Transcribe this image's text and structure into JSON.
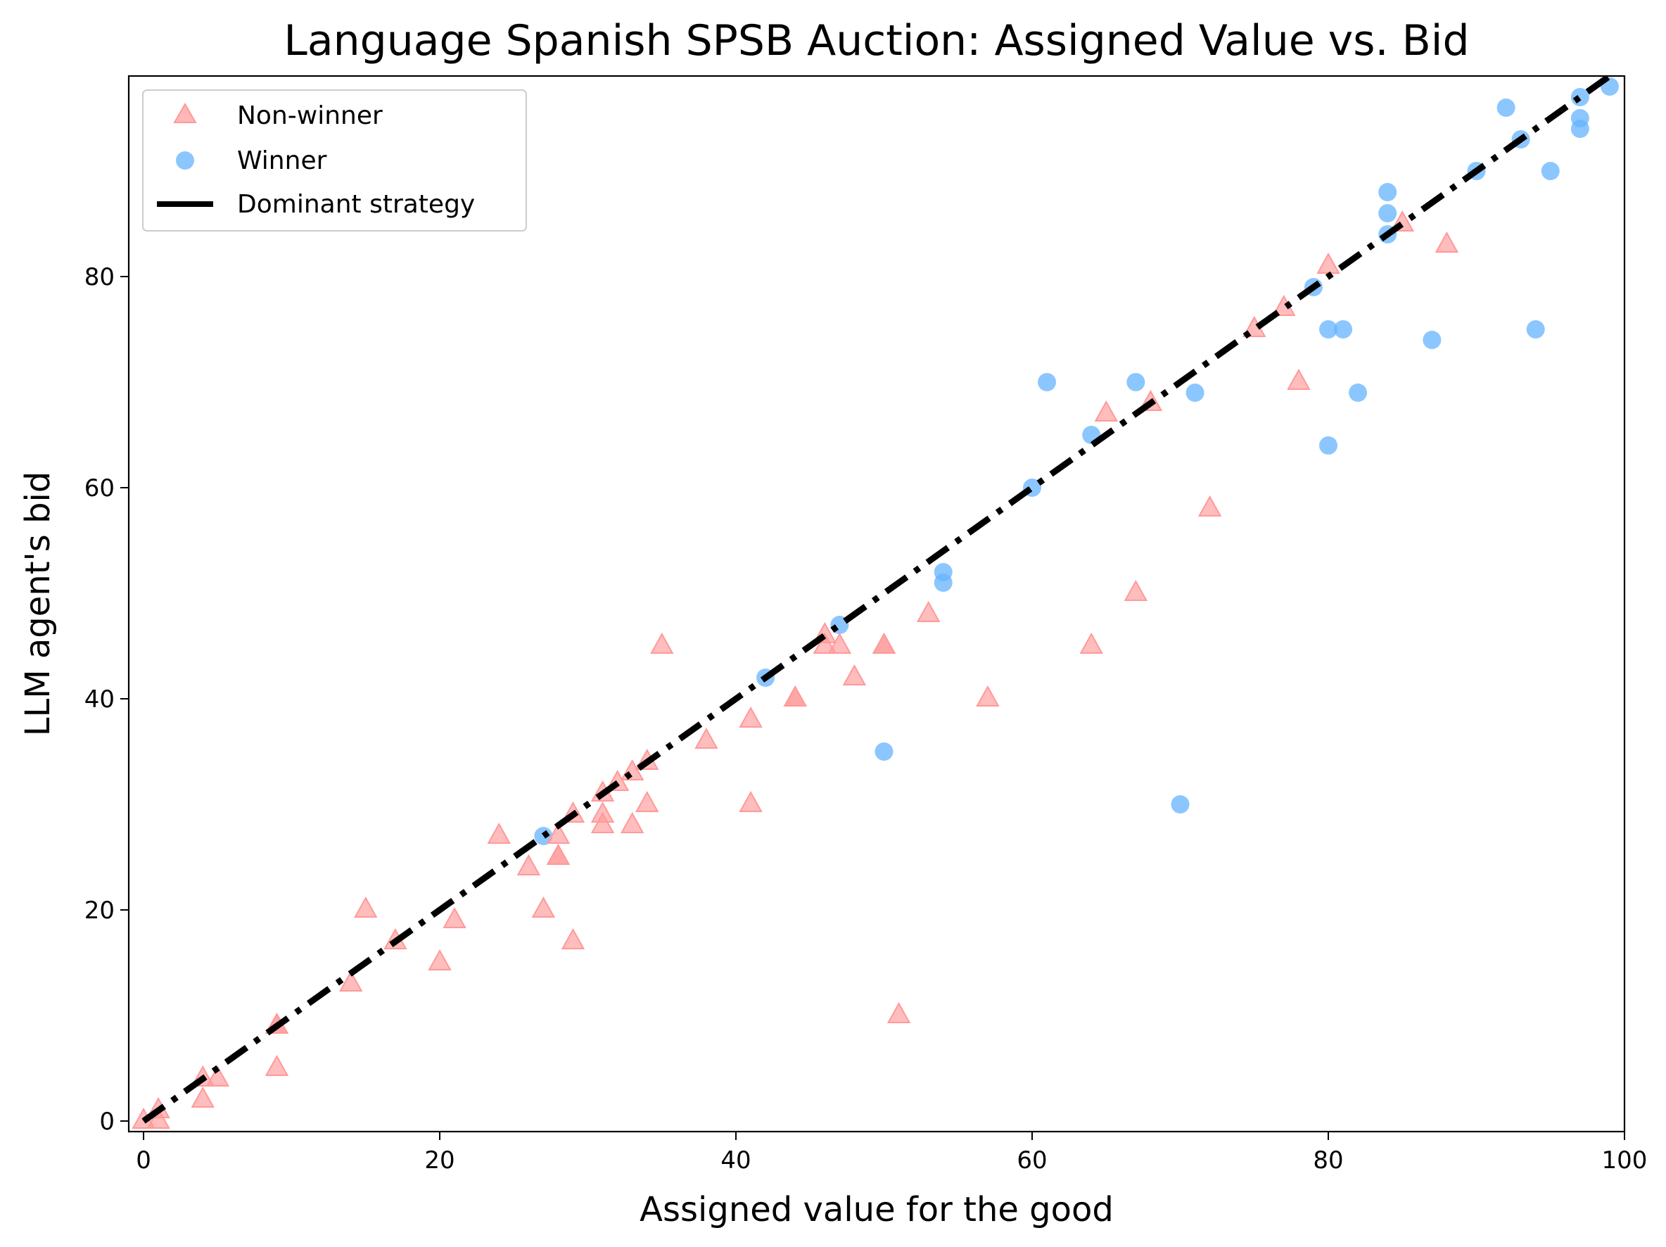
{
  "chart_data": {
    "type": "scatter",
    "title": "Language Spanish SPSB Auction: Assigned Value vs. Bid",
    "xlabel": "Assigned value for the good",
    "ylabel": "LLM agent's bid",
    "xlim": [
      -1,
      100
    ],
    "ylim": [
      -1,
      99
    ],
    "xticks": [
      0,
      20,
      40,
      60,
      80,
      100
    ],
    "yticks": [
      0,
      20,
      40,
      60,
      80
    ],
    "grid": false,
    "legend_position": "top-left",
    "series": [
      {
        "name": "Non-winner",
        "marker": "triangle",
        "color": "#ff9999",
        "points": [
          [
            0,
            0
          ],
          [
            1,
            1
          ],
          [
            1,
            0
          ],
          [
            4,
            4
          ],
          [
            4,
            2
          ],
          [
            5,
            4
          ],
          [
            9,
            9
          ],
          [
            9,
            9
          ],
          [
            9,
            5
          ],
          [
            14,
            13
          ],
          [
            15,
            20
          ],
          [
            17,
            17
          ],
          [
            20,
            15
          ],
          [
            21,
            19
          ],
          [
            24,
            27
          ],
          [
            26,
            24
          ],
          [
            27,
            20
          ],
          [
            28,
            27
          ],
          [
            28,
            25
          ],
          [
            28,
            25
          ],
          [
            29,
            29
          ],
          [
            29,
            17
          ],
          [
            31,
            31
          ],
          [
            31,
            29
          ],
          [
            31,
            28
          ],
          [
            32,
            32
          ],
          [
            33,
            33
          ],
          [
            33,
            28
          ],
          [
            34,
            34
          ],
          [
            34,
            30
          ],
          [
            35,
            45
          ],
          [
            38,
            36
          ],
          [
            41,
            38
          ],
          [
            41,
            30
          ],
          [
            44,
            40
          ],
          [
            44,
            40
          ],
          [
            46,
            46
          ],
          [
            46,
            45
          ],
          [
            47,
            45
          ],
          [
            48,
            42
          ],
          [
            50,
            45
          ],
          [
            50,
            45
          ],
          [
            51,
            10
          ],
          [
            53,
            48
          ],
          [
            57,
            40
          ],
          [
            64,
            45
          ],
          [
            65,
            67
          ],
          [
            67,
            50
          ],
          [
            68,
            68
          ],
          [
            72,
            58
          ],
          [
            75,
            75
          ],
          [
            77,
            77
          ],
          [
            78,
            70
          ],
          [
            80,
            81
          ],
          [
            85,
            85
          ],
          [
            88,
            83
          ]
        ]
      },
      {
        "name": "Winner",
        "marker": "circle",
        "color": "#66b3ff",
        "points": [
          [
            27,
            27
          ],
          [
            42,
            42
          ],
          [
            47,
            47
          ],
          [
            50,
            35
          ],
          [
            54,
            52
          ],
          [
            54,
            51
          ],
          [
            60,
            60
          ],
          [
            61,
            70
          ],
          [
            64,
            65
          ],
          [
            67,
            70
          ],
          [
            70,
            30
          ],
          [
            71,
            69
          ],
          [
            79,
            79
          ],
          [
            80,
            75
          ],
          [
            80,
            64
          ],
          [
            81,
            75
          ],
          [
            82,
            69
          ],
          [
            84,
            88
          ],
          [
            84,
            86
          ],
          [
            84,
            84
          ],
          [
            87,
            74
          ],
          [
            90,
            90
          ],
          [
            92,
            96
          ],
          [
            93,
            93
          ],
          [
            94,
            75
          ],
          [
            95,
            90
          ],
          [
            97,
            97
          ],
          [
            97,
            95
          ],
          [
            97,
            94
          ],
          [
            99,
            98
          ]
        ]
      }
    ],
    "reference_line": {
      "name": "Dominant strategy",
      "style": "dash-dot",
      "color": "#000000",
      "from": [
        0,
        0
      ],
      "to": [
        100,
        100
      ]
    }
  }
}
